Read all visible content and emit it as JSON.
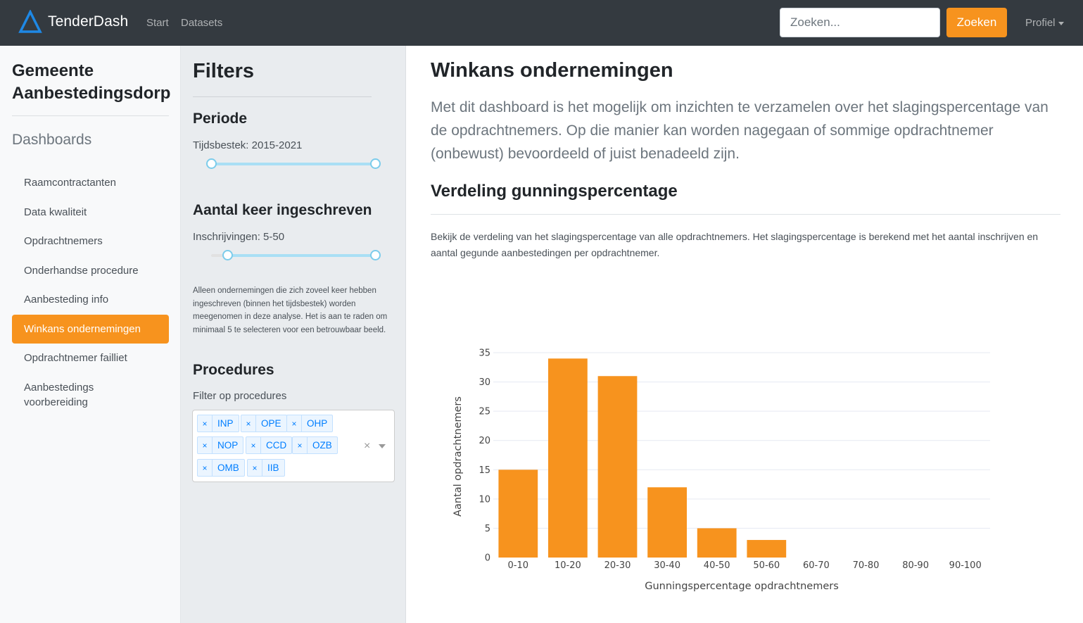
{
  "navbar": {
    "brand": "TenderDash",
    "links": [
      "Start",
      "Datasets"
    ],
    "search_placeholder": "Zoeken...",
    "search_button": "Zoeken",
    "profile": "Profiel",
    "accent": "#f7931e"
  },
  "sidebar": {
    "org_title": "Gemeente Aanbestedingsdorp",
    "heading": "Dashboards",
    "items": [
      "Raamcontractanten",
      "Data kwaliteit",
      "Opdrachtnemers",
      "Onderhandse procedure",
      "Aanbesteding info",
      "Winkans ondernemingen",
      "Opdrachtnemer failliet",
      "Aanbestedings voorbereiding"
    ],
    "active_item": "Winkans ondernemingen"
  },
  "filters": {
    "title": "Filters",
    "periode": {
      "title": "Periode",
      "label": "Tijdsbestek: 2015-2021",
      "min": 2015,
      "max": 2021
    },
    "aantal": {
      "title": "Aantal keer ingeschreven",
      "label": "Inschrijvingen: 5-50",
      "min": 5,
      "max": 50
    },
    "note": "Alleen ondernemingen die zich zoveel keer hebben ingeschreven (binnen het tijdsbestek) worden meegenomen in deze analyse. Het is aan te raden om minimaal 5 te selecteren voor een betrouwbaar beeld.",
    "procedures": {
      "title": "Procedures",
      "label": "Filter op procedures",
      "tags": [
        "INP",
        "OPE",
        "OHP",
        "NOP",
        "CCD",
        "OZB",
        "OMB",
        "IIB"
      ],
      "remove_symbol": "×",
      "clear_symbol": "×"
    }
  },
  "main": {
    "title": "Winkans ondernemingen",
    "lead": "Met dit dashboard is het mogelijk om inzichten te verzamelen over het slagingspercentage van de opdrachtnemers. Op die manier kan worden nagegaan of sommige opdrachtnemer (onbewust) bevoordeeld of juist benadeeld zijn.",
    "sub_title": "Verdeling gunningspercentage",
    "description": "Bekijk de verdeling van het slagingspercentage van alle opdrachtnemers. Het slagingspercentage is berekend met het aantal inschrijven en aantal gegunde aanbestedingen per opdrachtnemer."
  },
  "chart_data": {
    "type": "bar",
    "categories": [
      "0-10",
      "10-20",
      "20-30",
      "30-40",
      "40-50",
      "50-60",
      "60-70",
      "70-80",
      "80-90",
      "90-100"
    ],
    "values": [
      15,
      34,
      31,
      12,
      5,
      3,
      0,
      0,
      0,
      0
    ],
    "title": "",
    "xlabel": "Gunningspercentage opdrachtnemers",
    "ylabel": "Aantal opdrachtnemers",
    "ylim": [
      0,
      35
    ],
    "yticks": [
      0,
      5,
      10,
      15,
      20,
      25,
      30,
      35
    ],
    "grid": true,
    "bar_color": "#f7931e"
  }
}
